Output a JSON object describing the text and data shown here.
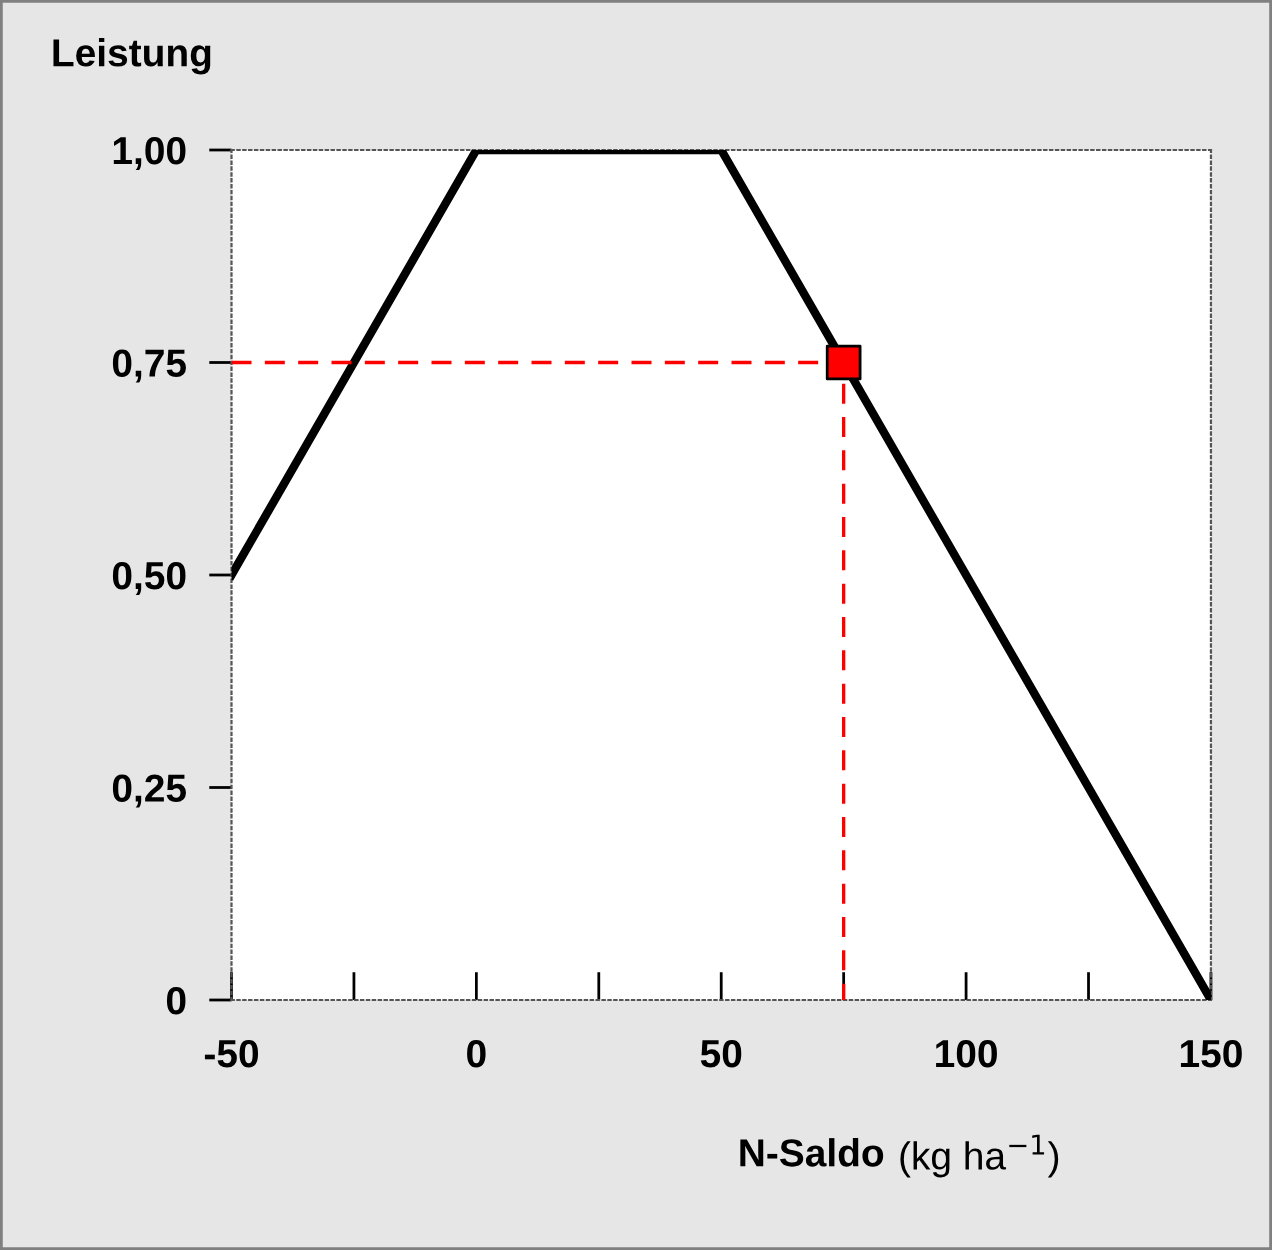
{
  "chart_data": {
    "type": "line",
    "ylabel": "Leistung",
    "xlabel": "N-Saldo (kg ha$^{−1}$)",
    "xlim": [
      -50,
      150
    ],
    "ylim": [
      0,
      1
    ],
    "xticks": [
      -50,
      {
        "value": -25,
        "label": null
      },
      0,
      {
        "value": 25,
        "label": null
      },
      50,
      {
        "value": 75,
        "label": null
      },
      100,
      {
        "value": 125,
        "label": null
      },
      150
    ],
    "yticks": [
      {
        "value": 0,
        "label": "0"
      },
      {
        "value": 0.25,
        "label": "0,25"
      },
      {
        "value": 0.5,
        "label": "0,50"
      },
      {
        "value": 0.75,
        "label": "0,75"
      },
      {
        "value": 1,
        "label": "1,00"
      }
    ],
    "grid": false,
    "series": [
      {
        "color": "#000000",
        "x": [
          -50,
          0,
          50,
          150
        ],
        "values": [
          0.5,
          1,
          1,
          0
        ],
        "line_style": "solid",
        "marker": "none"
      },
      {
        "type": "line",
        "color": "#ff0000",
        "x": [
          -50,
          75,
          75
        ],
        "values": [
          0.75,
          0.75,
          0
        ],
        "line_style": "dashed",
        "marker": "none"
      },
      {
        "type": "scatter",
        "color": "#ff0000",
        "x": [
          75
        ],
        "values": [
          0.75
        ],
        "marker": "square"
      }
    ]
  }
}
